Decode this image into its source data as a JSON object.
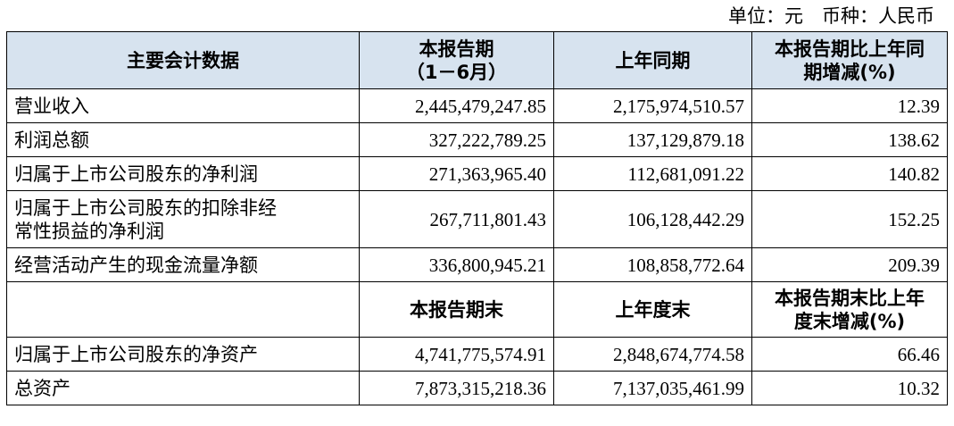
{
  "unit_line": "单位：元　币种：人民币",
  "header": {
    "col1": "主要会计数据",
    "col2_line1": "本报告期",
    "col2_line2": "（1－6月）",
    "col3": "上年同期",
    "col4_line1": "本报告期比上年同",
    "col4_line2": "期增减(%)"
  },
  "rows_a": [
    {
      "label": "营业收入",
      "current": "2,445,479,247.85",
      "prior": "2,175,974,510.57",
      "change": "12.39"
    },
    {
      "label": "利润总额",
      "current": "327,222,789.25",
      "prior": "137,129,879.18",
      "change": "138.62"
    },
    {
      "label": "归属于上市公司股东的净利润",
      "current": "271,363,965.40",
      "prior": "112,681,091.22",
      "change": "140.82"
    },
    {
      "label_line1": "归属于上市公司股东的扣除非经",
      "label_line2": "常性损益的净利润",
      "current": "267,711,801.43",
      "prior": "106,128,442.29",
      "change": "152.25"
    },
    {
      "label": "经营活动产生的现金流量净额",
      "current": "336,800,945.21",
      "prior": "108,858,772.64",
      "change": "209.39"
    }
  ],
  "subheader": {
    "col2": "本报告期末",
    "col3": "上年度末",
    "col4_line1": "本报告期末比上年",
    "col4_line2": "度末增减(%)"
  },
  "rows_b": [
    {
      "label": "归属于上市公司股东的净资产",
      "current": "4,741,775,574.91",
      "prior": "2,848,674,774.58",
      "change": "66.46"
    },
    {
      "label": "总资产",
      "current": "7,873,315,218.36",
      "prior": "7,137,035,461.99",
      "change": "10.32"
    }
  ]
}
